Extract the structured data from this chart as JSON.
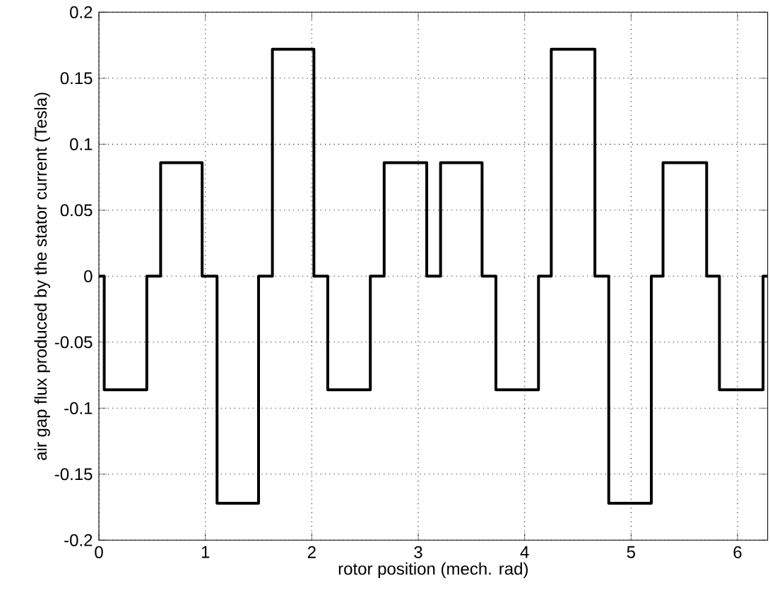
{
  "chart_data": {
    "type": "step",
    "xlabel": "rotor position (mech. rad)",
    "ylabel": "air gap flux produced by the stator current (Tesla)",
    "x": [
      0,
      0.05,
      0.45,
      0.58,
      0.97,
      1.11,
      1.5,
      1.63,
      2.02,
      2.15,
      2.55,
      2.68,
      3.08,
      3.21,
      3.6,
      3.73,
      4.13,
      4.25,
      4.66,
      4.79,
      5.19,
      5.3,
      5.71,
      5.83,
      6.24,
      6.283
    ],
    "values": [
      0,
      -0.086,
      0,
      0.086,
      0,
      -0.172,
      0,
      0.172,
      0,
      -0.086,
      0,
      0.086,
      0,
      0.086,
      0,
      -0.086,
      0,
      0.172,
      0,
      -0.172,
      0,
      0.086,
      0,
      -0.086,
      0,
      0
    ],
    "color": "#000000",
    "line_style": "solid",
    "xlim": [
      0,
      6.283
    ],
    "ylim": [
      -0.2,
      0.2
    ],
    "xticks": [
      0,
      1,
      2,
      3,
      4,
      5,
      6
    ],
    "yticks": [
      -0.2,
      -0.15,
      -0.1,
      -0.05,
      0,
      0.05,
      0.1,
      0.15,
      0.2
    ],
    "grid": true
  }
}
